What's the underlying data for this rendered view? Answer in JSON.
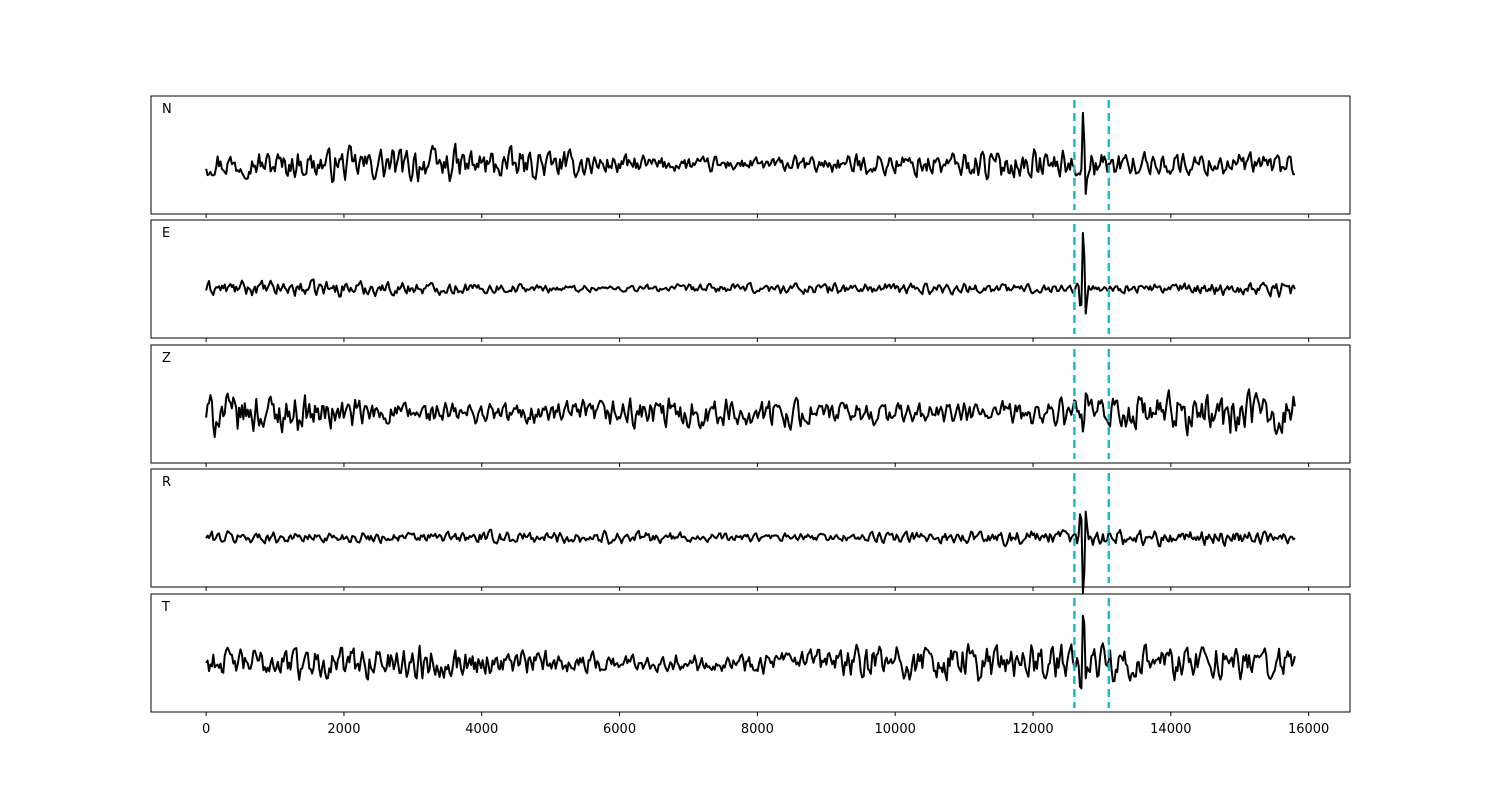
{
  "chart_data": {
    "type": "line",
    "x_axis": {
      "ticks": [
        0,
        2000,
        4000,
        6000,
        8000,
        10000,
        12000,
        14000,
        16000
      ],
      "tick_labels": [
        "0",
        "2000",
        "4000",
        "6000",
        "8000",
        "10000",
        "12000",
        "14000",
        "16000"
      ],
      "xlim": [
        -800,
        16600
      ]
    },
    "x_range": [
      0,
      15800
    ],
    "pick_lines": {
      "x": [
        12600,
        13100
      ],
      "color": "#17becf",
      "style": "dashed"
    },
    "trace_color": "#000000",
    "panels": [
      {
        "label": "N",
        "series": [
          {
            "amplitude": "moderate",
            "noise_level": 0.2,
            "event_peak": 0.52
          }
        ]
      },
      {
        "label": "E",
        "series": [
          {
            "amplitude": "low",
            "noise_level": 0.09,
            "event_peak": 0.55
          }
        ]
      },
      {
        "label": "Z",
        "series": [
          {
            "amplitude": "high",
            "noise_level": 0.24,
            "event_peak": 0.18
          }
        ]
      },
      {
        "label": "R",
        "series": [
          {
            "amplitude": "low",
            "noise_level": 0.1,
            "event_peak": 0.62
          }
        ]
      },
      {
        "label": "T",
        "series": [
          {
            "amplitude": "high",
            "noise_level": 0.24,
            "event_peak": 0.4
          }
        ]
      }
    ],
    "grid": false,
    "title": "",
    "xlabel": "",
    "ylabel": ""
  }
}
